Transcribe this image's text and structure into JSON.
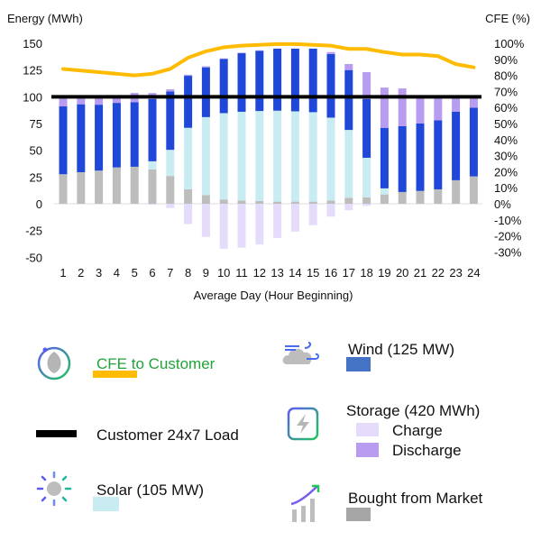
{
  "chart_data": {
    "type": "bar",
    "stacked": true,
    "xlabel": "Average Day (Hour Beginning)",
    "ylabel": "Energy (MWh)",
    "y2label": "CFE (%)",
    "ylim": [
      -50,
      150
    ],
    "y2lim": [
      -30,
      100
    ],
    "yticks": [
      "150",
      "125",
      "100",
      "75",
      "50",
      "25",
      "0",
      "-25",
      "-50"
    ],
    "y2ticks": [
      "100%",
      "90%",
      "80%",
      "70%",
      "60%",
      "50%",
      "40%",
      "30%",
      "20%",
      "10%",
      "0%",
      "-10%",
      "-20%",
      "-30%"
    ],
    "categories": [
      "1",
      "2",
      "3",
      "4",
      "5",
      "6",
      "7",
      "8",
      "9",
      "10",
      "11",
      "12",
      "13",
      "14",
      "15",
      "16",
      "17",
      "18",
      "19",
      "20",
      "21",
      "22",
      "23",
      "24"
    ],
    "series": [
      {
        "name": "Bought from Market",
        "color": "#bdbdbd",
        "values": [
          27.6,
          29.5,
          31,
          34,
          34.6,
          32,
          26,
          13.5,
          8,
          4,
          3,
          2.5,
          2,
          2,
          2,
          3,
          5.6,
          6,
          8.7,
          11,
          12,
          13.5,
          22,
          25.6
        ]
      },
      {
        "name": "Solar (105 MW)",
        "color": "#c9ecf3",
        "values": [
          0,
          0,
          0,
          0,
          0,
          7.7,
          24.4,
          57.5,
          73,
          80.7,
          83,
          84.2,
          85,
          84.4,
          83.6,
          77.5,
          63.4,
          37,
          5.7,
          0,
          0,
          0,
          0,
          0
        ]
      },
      {
        "name": "Wind (125 MW)",
        "color": "#1f48d8",
        "values": [
          63.4,
          63.5,
          61.6,
          60.3,
          60.4,
          58.3,
          54.6,
          48.6,
          46.5,
          50.7,
          54.7,
          56.3,
          58,
          58.6,
          59.4,
          59.5,
          56,
          55,
          56.6,
          61.6,
          63,
          64.5,
          64,
          64.2
        ]
      },
      {
        "name": "Discharge",
        "color": "#b89cf0",
        "values": [
          9,
          7,
          7.4,
          5.7,
          8.6,
          5.5,
          2,
          1,
          1,
          0.5,
          0.5,
          0.5,
          0,
          0,
          0,
          1.8,
          5.6,
          25,
          37.6,
          35.2,
          25,
          22,
          14,
          10.2
        ]
      },
      {
        "name": "Charge",
        "color": "#e5dbfb",
        "values": [
          0,
          -0.5,
          0,
          0,
          0,
          -1,
          -4,
          -19,
          -31,
          -42,
          -41,
          -38,
          -32,
          -26,
          -20,
          -12,
          -6,
          -2,
          0,
          0,
          0,
          0,
          0,
          0
        ]
      }
    ],
    "load": {
      "name": "Customer 24x7 Load",
      "value": 100,
      "color": "#000000"
    },
    "cfe": {
      "name": "CFE to Customer",
      "axis": "right",
      "color": "#ffbb00",
      "values": [
        84,
        83,
        82,
        81,
        80,
        81,
        84,
        91,
        95,
        97.5,
        98.5,
        99,
        99.5,
        99.5,
        99,
        98.5,
        96.5,
        96.5,
        94.5,
        93,
        93,
        92,
        87,
        85
      ]
    }
  },
  "legend": {
    "cfe": "CFE to Customer",
    "load": "Customer 24x7 Load",
    "solar": "Solar (105 MW)",
    "wind": "Wind (125 MW)",
    "storage": "Storage (420 MWh)",
    "charge": "Charge",
    "discharge": "Discharge",
    "market": "Bought from Market"
  }
}
